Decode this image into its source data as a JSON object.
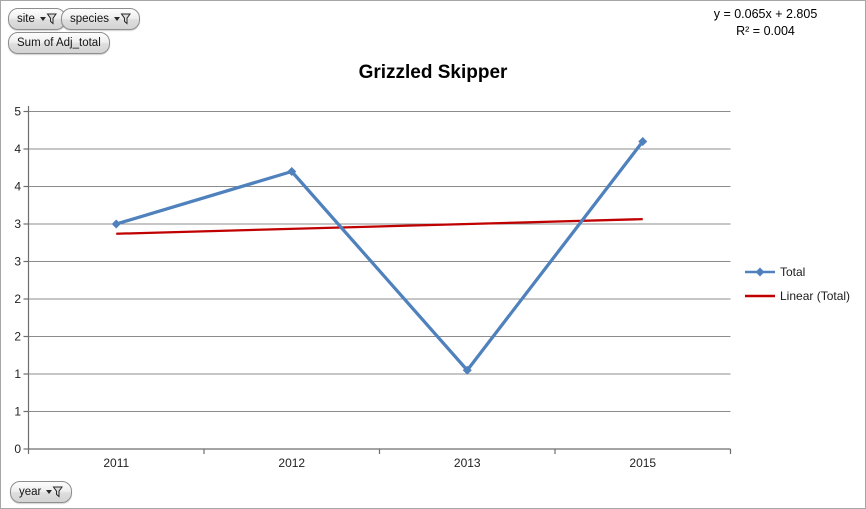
{
  "window": {
    "background": "#ffffff",
    "border_color": "#a6a6a6"
  },
  "pivot_filters": {
    "site_label": "site",
    "species_label": "species",
    "value_field_label": "Sum of Adj_total",
    "axis_field_label": "year"
  },
  "chart_data": {
    "type": "line",
    "title": "Grizzled Skipper",
    "categories": [
      "2011",
      "2012",
      "2013",
      "2015"
    ],
    "series": [
      {
        "name": "Total",
        "values": [
          3.0,
          3.7,
          1.05,
          4.1
        ],
        "color": "#4f81bd",
        "marker": "diamond"
      }
    ],
    "trendline": {
      "name": "Linear (Total)",
      "slope": 0.065,
      "intercept": 2.805,
      "r_squared": 0.004,
      "color": "#c00000",
      "equation_text": "y = 0.065x + 2.805",
      "r_squared_text": "R² = 0.004"
    },
    "y_axis": {
      "min": 0,
      "max": 4.5,
      "step": 0.5,
      "tick_labels_bottom_to_top": [
        "0",
        "1",
        "1",
        "2",
        "2",
        "3",
        "3",
        "4",
        "4",
        "5"
      ]
    },
    "x_axis": {
      "tick_labels": [
        "2011",
        "2012",
        "2013",
        "2015"
      ]
    },
    "grid": true,
    "gridline_color": "#8c8c8c",
    "axis_color": "#6e6e6e",
    "legend_position": "right",
    "legend": [
      {
        "label": "Total"
      },
      {
        "label": "Linear (Total)"
      }
    ]
  }
}
